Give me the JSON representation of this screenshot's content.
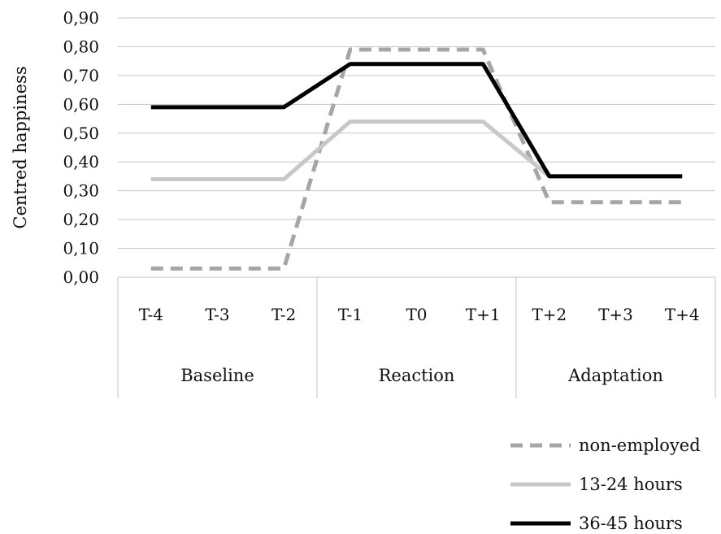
{
  "chart_data": {
    "type": "line",
    "ylabel": "Centred happiness",
    "ylim": [
      0,
      0.9
    ],
    "y_ticks": [
      "0,00",
      "0,10",
      "0,20",
      "0,30",
      "0,40",
      "0,50",
      "0,60",
      "0,70",
      "0,80",
      "0,90"
    ],
    "categories": [
      "T-4",
      "T-3",
      "T-2",
      "T-1",
      "T0",
      "T+1",
      "T+2",
      "T+3",
      "T+4"
    ],
    "category_groups": [
      {
        "label": "Baseline",
        "span": 3
      },
      {
        "label": "Reaction",
        "span": 3
      },
      {
        "label": "Adaptation",
        "span": 3
      }
    ],
    "grid": true,
    "legend_position": "bottom-right",
    "series": [
      {
        "name": "non-employed",
        "values": [
          0.03,
          0.03,
          0.03,
          0.79,
          0.79,
          0.79,
          0.26,
          0.26,
          0.26
        ],
        "color": "#a6a6a6",
        "dash": "dashed"
      },
      {
        "name": "13-24 hours",
        "values": [
          0.34,
          0.34,
          0.34,
          0.54,
          0.54,
          0.54,
          0.35,
          0.35,
          0.35
        ],
        "color": "#c8c8c8",
        "dash": "solid"
      },
      {
        "name": "36-45 hours",
        "values": [
          0.59,
          0.59,
          0.59,
          0.74,
          0.74,
          0.74,
          0.35,
          0.35,
          0.35
        ],
        "color": "#000000",
        "dash": "solid"
      }
    ]
  }
}
